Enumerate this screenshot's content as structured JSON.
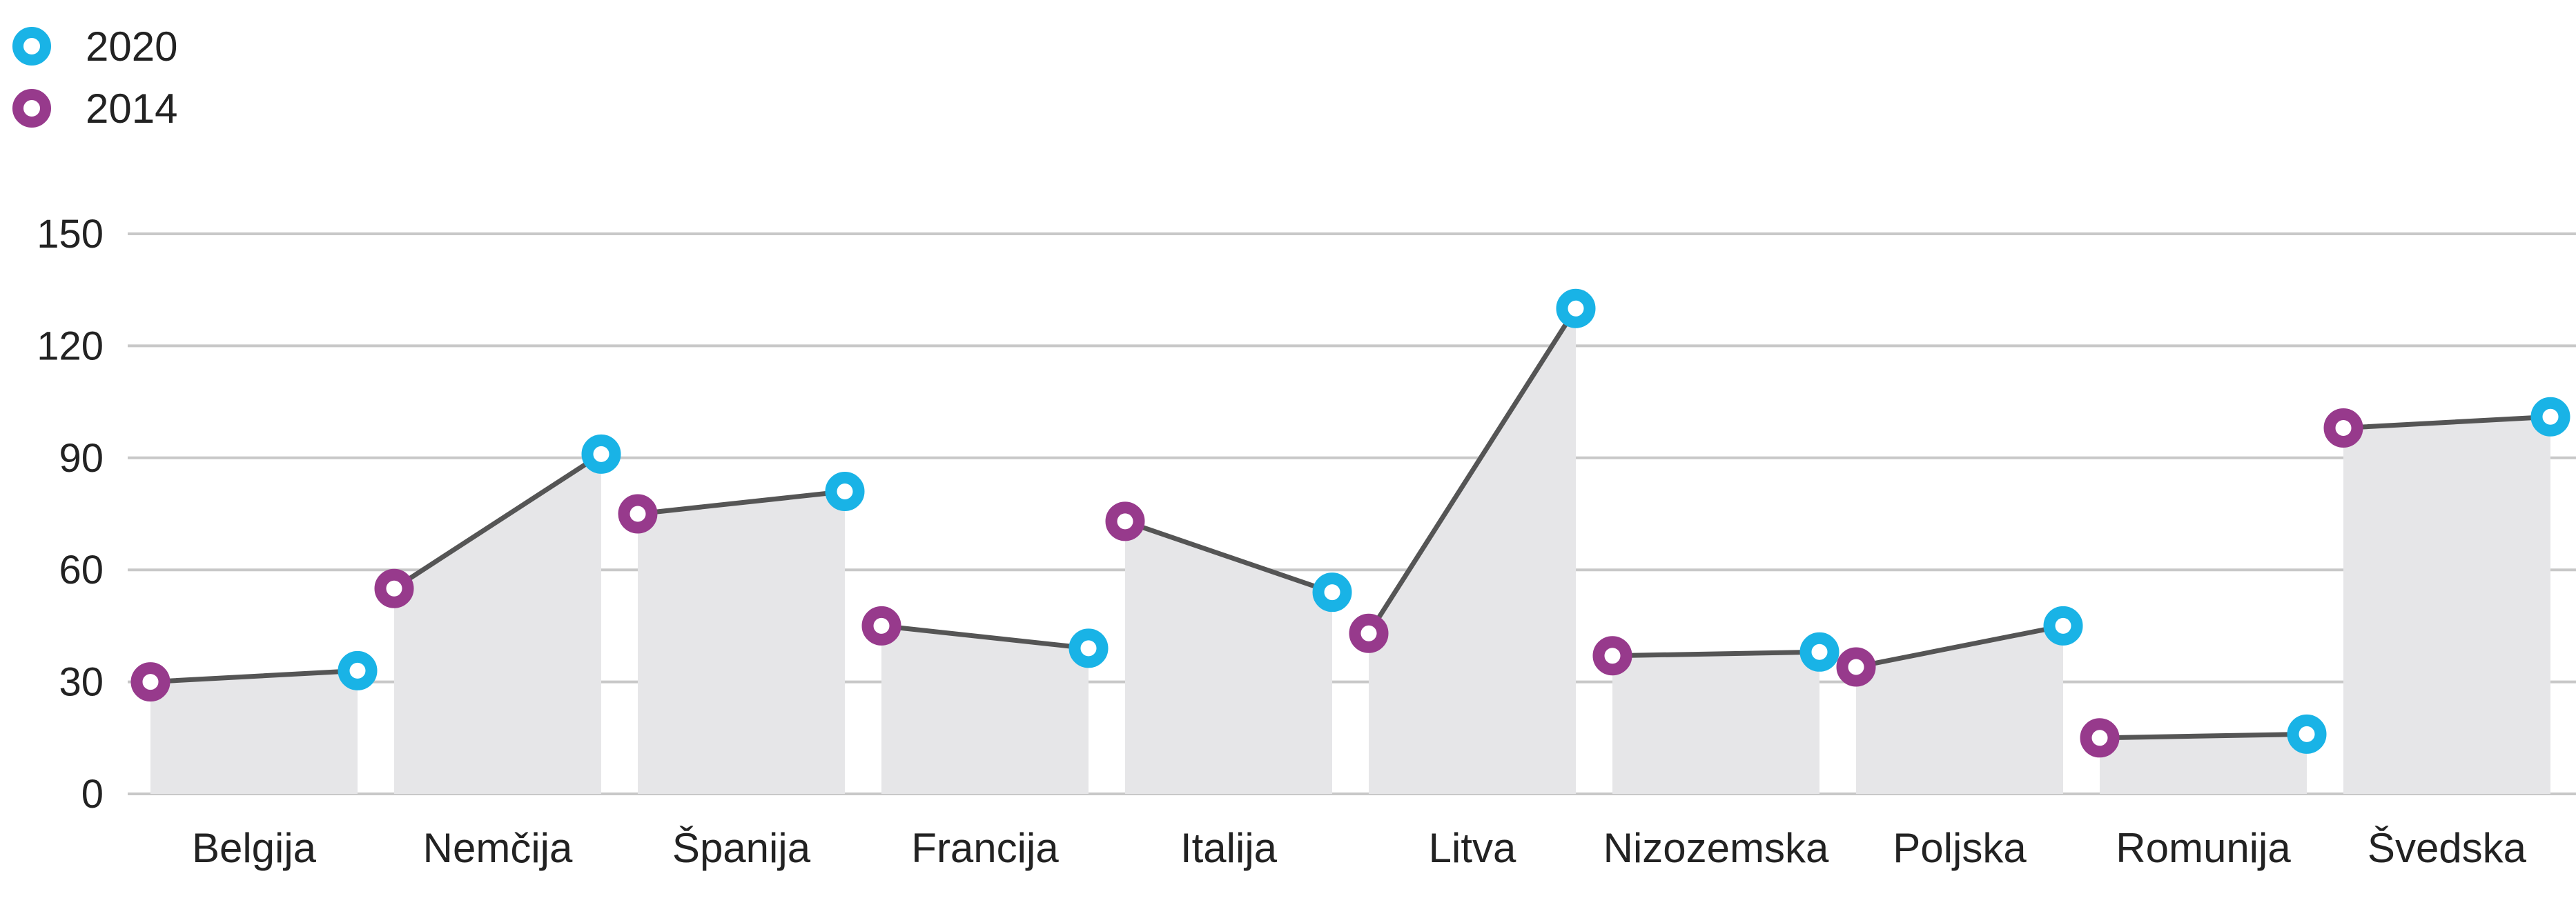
{
  "chart_data": {
    "type": "line",
    "categories": [
      "Belgija",
      "Nemčija",
      "Španija",
      "Francija",
      "Italija",
      "Litva",
      "Nizozemska",
      "Poljska",
      "Romunija",
      "Švedska"
    ],
    "series": [
      {
        "name": "2014",
        "values": [
          30,
          55,
          75,
          45,
          73,
          43,
          37,
          34,
          15,
          98
        ]
      },
      {
        "name": "2020",
        "values": [
          33,
          91,
          81,
          39,
          54,
          130,
          38,
          45,
          16,
          101
        ]
      }
    ],
    "yticks": [
      "0",
      "30",
      "60",
      "90",
      "120",
      "150"
    ],
    "ylim": [
      0,
      150
    ],
    "title": "",
    "xlabel": "",
    "ylabel": "",
    "grid": true,
    "legend_position": "top-left"
  },
  "legend": {
    "items": [
      {
        "label": "2020",
        "color": "#19b3e6"
      },
      {
        "label": "2014",
        "color": "#973a8c"
      }
    ]
  },
  "colors": {
    "series_2020": "#19b3e6",
    "series_2014": "#973a8c",
    "connector": "#555555",
    "area_fill": "#e6e6e8",
    "grid": "#c8c8c8"
  }
}
